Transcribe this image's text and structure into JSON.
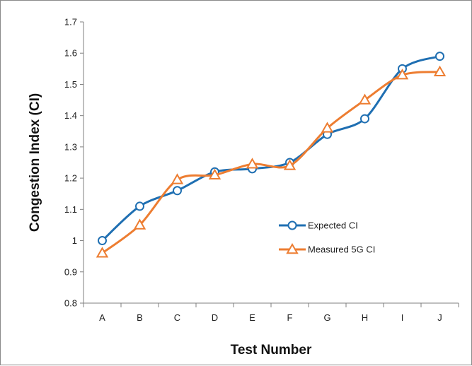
{
  "chart_data": {
    "type": "line",
    "title": "",
    "xlabel": "Test Number",
    "ylabel": "Congestion Index (CI)",
    "categories": [
      "A",
      "B",
      "C",
      "D",
      "E",
      "F",
      "G",
      "H",
      "I",
      "J"
    ],
    "ylim": [
      0.8,
      1.7
    ],
    "yticks": [
      0.8,
      0.9,
      1,
      1.1,
      1.2,
      1.3,
      1.4,
      1.5,
      1.6,
      1.7
    ],
    "grid": false,
    "legend_position": "right",
    "series": [
      {
        "name": "Expected CI",
        "values": [
          1.0,
          1.11,
          1.16,
          1.22,
          1.23,
          1.25,
          1.34,
          1.39,
          1.55,
          1.59
        ],
        "color": "#1f6fb2",
        "marker": "circle"
      },
      {
        "name": "Measured 5G CI",
        "values": [
          0.96,
          1.05,
          1.195,
          1.21,
          1.245,
          1.24,
          1.36,
          1.45,
          1.53,
          1.54
        ],
        "color": "#ed7d31",
        "marker": "triangle"
      }
    ]
  }
}
